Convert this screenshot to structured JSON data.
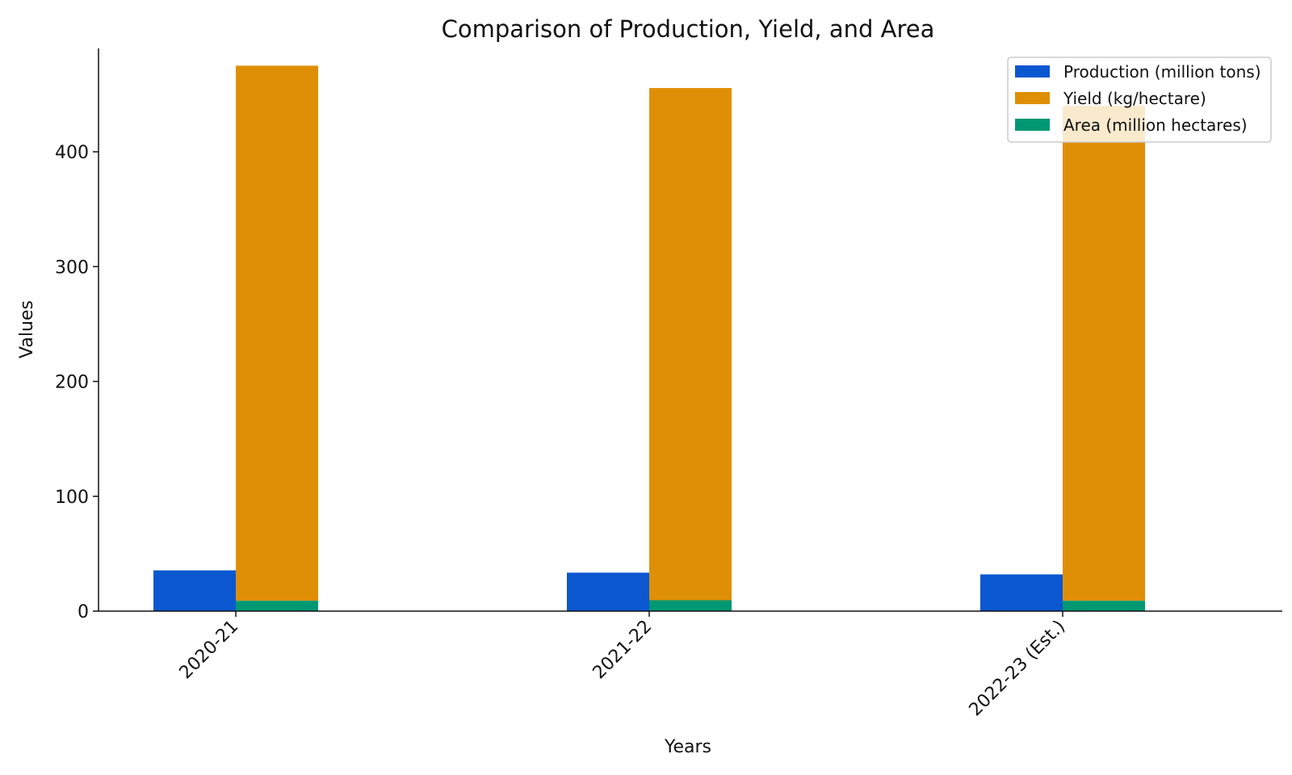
{
  "chart_data": {
    "type": "bar",
    "title": "Comparison of Production, Yield, and Area",
    "xlabel": "Years",
    "ylabel": "Values",
    "categories": [
      "2020-21",
      "2021-22",
      "2022-23 (Est.)"
    ],
    "ylim": [
      0,
      490
    ],
    "yticks": [
      0,
      100,
      200,
      300,
      400
    ],
    "grid": false,
    "legend_position": "top-right",
    "series": [
      {
        "name": "Production (million tons)",
        "color": "#0b57d0",
        "values": [
          35.5,
          33.5,
          32
        ],
        "offset": "left"
      },
      {
        "name": "Yield (kg/hectare)",
        "color": "#df8f05",
        "values": [
          466,
          446,
          431
        ],
        "offset": "right",
        "stacked_on": "Area (million hectares)"
      },
      {
        "name": "Area (million hectares)",
        "color": "#009873",
        "values": [
          9,
          9.5,
          9
        ],
        "offset": "right"
      }
    ]
  }
}
